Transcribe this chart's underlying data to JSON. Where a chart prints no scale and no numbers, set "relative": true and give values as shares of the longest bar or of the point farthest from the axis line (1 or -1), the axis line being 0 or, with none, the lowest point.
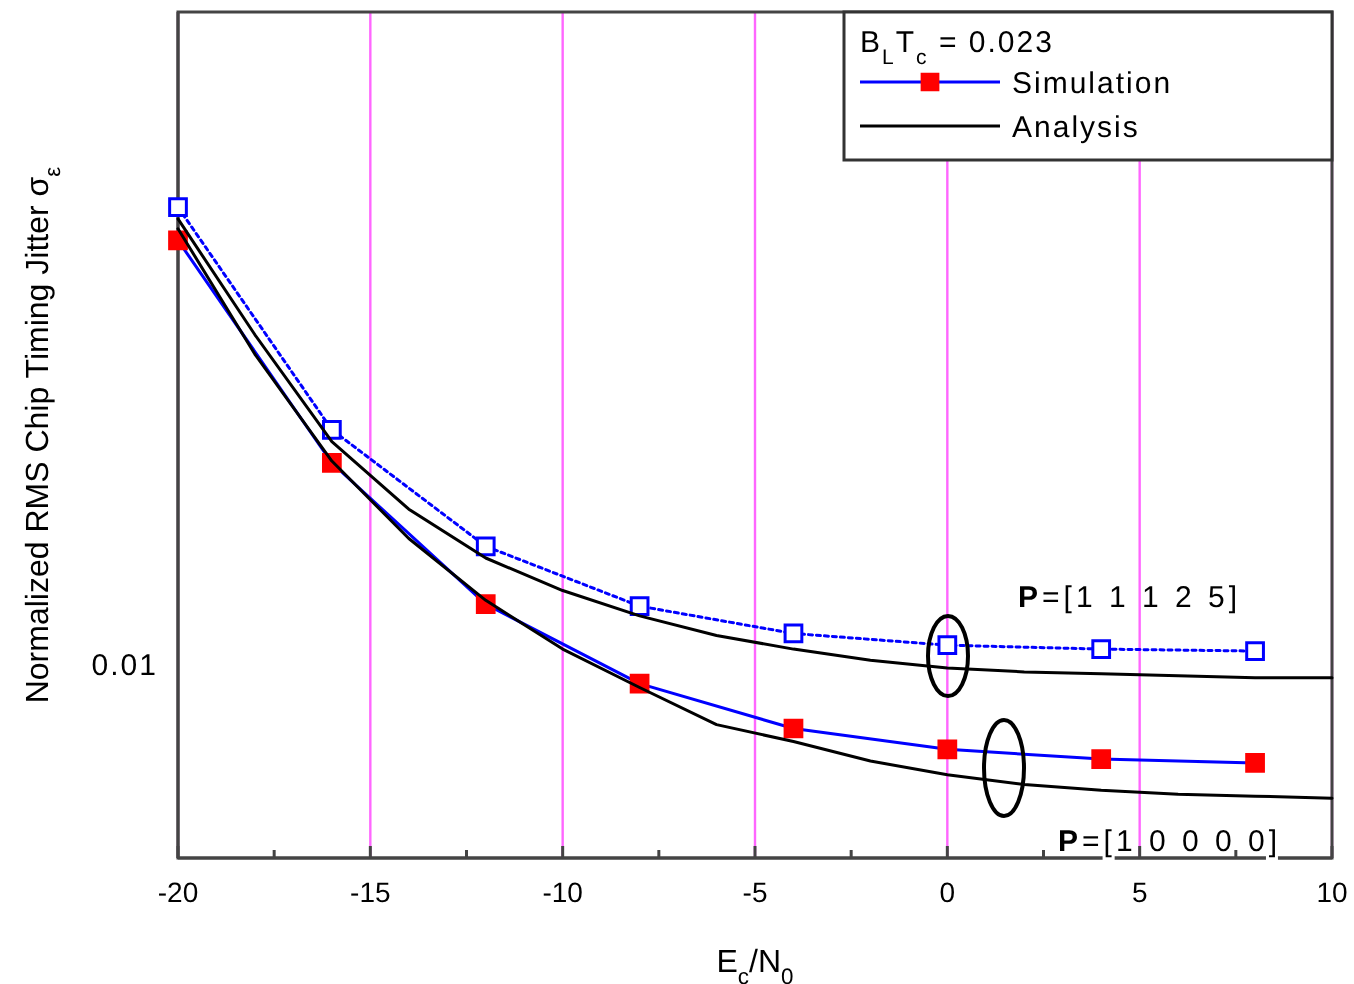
{
  "chart_data": {
    "type": "line",
    "relative": true,
    "xlabel": "E$_{c}$/N$_{0}$",
    "ylabel": "Normalized RMS Chip Timing Jitter σ$_{ε}$",
    "legend_title": "B$_{L}$T$_{c}$ = 0.023",
    "grid": "x",
    "legend": "top right",
    "xlim": [
      -20,
      10
    ],
    "xticks": [
      -20,
      {
        "value": -17.5,
        "label": null
      },
      -15,
      {
        "value": -12.5,
        "label": null
      },
      -10,
      {
        "value": -7.5,
        "label": null
      },
      -5,
      {
        "value": -2.5,
        "label": null
      },
      0,
      {
        "value": 2.5,
        "label": null
      },
      5,
      {
        "value": 7.5,
        "label": null
      },
      10
    ],
    "series": [
      {
        "name": "Simulation",
        "color": "#0000ff",
        "colors": [
          "#ff0000",
          "#ff0000",
          "#ff0000",
          "#ff0000",
          "#ff0000",
          "#ff0000",
          "#ff0000",
          "#ff0000"
        ],
        "marker": "square",
        "line_style": "solid",
        "x": [
          -20,
          -16,
          -12,
          -8,
          -4,
          0,
          4,
          8
        ],
        "values": [
          0.949,
          0.607,
          0.39,
          0.268,
          0.199,
          0.167,
          0.152,
          0.146
        ]
      },
      {
        "color": "#0000ff",
        "marker": "square",
        "line_style": "dotted",
        "x": [
          -20,
          -16,
          -12,
          -8,
          -4,
          0,
          4,
          8
        ],
        "values": [
          1,
          0.658,
          0.479,
          0.387,
          0.345,
          0.327,
          0.321,
          0.318
        ]
      },
      {
        "name": "Analysis",
        "color": "#000000",
        "marker": "none",
        "line_style": "solid",
        "x": [
          -20,
          -18,
          -16,
          -14,
          -12,
          -10,
          -8,
          -6,
          -4,
          -2,
          0,
          2,
          4,
          6,
          8,
          10
        ],
        "values": [
          0.982,
          0.804,
          0.64,
          0.536,
          0.461,
          0.411,
          0.372,
          0.342,
          0.321,
          0.304,
          0.292,
          0.286,
          0.283,
          0.28,
          0.277,
          0.277
        ]
      },
      {
        "color": "#000000",
        "marker": "none",
        "line_style": "solid",
        "x": [
          -20,
          -18,
          -16,
          -14,
          -12,
          -10,
          -8,
          -6,
          -4,
          -2,
          0,
          2,
          4,
          6,
          8,
          10
        ],
        "values": [
          0.967,
          0.774,
          0.61,
          0.491,
          0.396,
          0.321,
          0.262,
          0.205,
          0.179,
          0.149,
          0.128,
          0.113,
          0.104,
          0.098,
          0.095,
          0.092
        ]
      }
    ],
    "annotations": [
      "0.01",
      "P=[1 1 1 2 5]",
      "P=[1 0 0 0 0]"
    ]
  }
}
